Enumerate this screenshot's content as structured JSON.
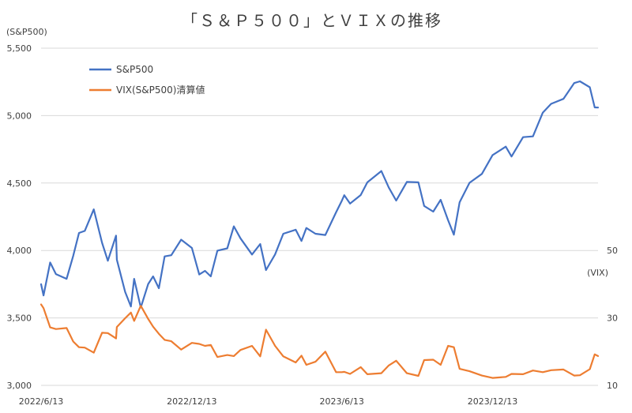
{
  "chart_data": {
    "type": "line",
    "title": "「Ｓ＆Ｐ５００」とＶＩＸの推移",
    "left_axis_label": "(S&P500)",
    "right_axis_label": "(VIX)",
    "left_axis": {
      "min": 3000,
      "max": 5500,
      "ticks": [
        "3,000",
        "3,500",
        "4,000",
        "4,500",
        "5,000",
        "5,500"
      ],
      "tick_values": [
        3000,
        3500,
        4000,
        4500,
        5000,
        5500
      ]
    },
    "right_axis": {
      "min": 10,
      "max": 110,
      "ticks": [
        "10",
        "30",
        "50"
      ],
      "tick_values": [
        10,
        30,
        50
      ]
    },
    "x_axis": {
      "start": "2022-06-13",
      "end": "2024-04-19",
      "tick_labels": [
        "2022/6/13",
        "2022/12/13",
        "2023/6/13",
        "2023/12/13"
      ],
      "tick_dates": [
        "2022-06-13",
        "2022-12-13",
        "2023-06-13",
        "2023-12-13"
      ]
    },
    "grid": "horizontal",
    "legend_position": "top-left",
    "series": [
      {
        "name": "S&P500",
        "axis": "left",
        "color": "#4472C4",
        "points": [
          [
            "2022-06-13",
            3750
          ],
          [
            "2022-06-16",
            3667
          ],
          [
            "2022-06-24",
            3911
          ],
          [
            "2022-07-01",
            3825
          ],
          [
            "2022-07-14",
            3790
          ],
          [
            "2022-07-22",
            3961
          ],
          [
            "2022-07-29",
            4130
          ],
          [
            "2022-08-05",
            4145
          ],
          [
            "2022-08-16",
            4305
          ],
          [
            "2022-08-26",
            4057
          ],
          [
            "2022-09-02",
            3924
          ],
          [
            "2022-09-12",
            4110
          ],
          [
            "2022-09-13",
            3932
          ],
          [
            "2022-09-23",
            3693
          ],
          [
            "2022-09-30",
            3585
          ],
          [
            "2022-10-04",
            3790
          ],
          [
            "2022-10-12",
            3577
          ],
          [
            "2022-10-21",
            3752
          ],
          [
            "2022-10-27",
            3808
          ],
          [
            "2022-11-03",
            3720
          ],
          [
            "2022-11-10",
            3956
          ],
          [
            "2022-11-18",
            3965
          ],
          [
            "2022-11-30",
            4080
          ],
          [
            "2022-12-13",
            4019
          ],
          [
            "2022-12-22",
            3822
          ],
          [
            "2022-12-29",
            3849
          ],
          [
            "2023-01-05",
            3808
          ],
          [
            "2023-01-13",
            3999
          ],
          [
            "2023-01-25",
            4016
          ],
          [
            "2023-02-02",
            4179
          ],
          [
            "2023-02-10",
            4090
          ],
          [
            "2023-02-24",
            3970
          ],
          [
            "2023-03-06",
            4048
          ],
          [
            "2023-03-13",
            3855
          ],
          [
            "2023-03-24",
            3971
          ],
          [
            "2023-04-03",
            4124
          ],
          [
            "2023-04-18",
            4154
          ],
          [
            "2023-04-25",
            4071
          ],
          [
            "2023-05-01",
            4167
          ],
          [
            "2023-05-12",
            4124
          ],
          [
            "2023-05-24",
            4115
          ],
          [
            "2023-06-06",
            4283
          ],
          [
            "2023-06-13",
            4369
          ],
          [
            "2023-06-16",
            4410
          ],
          [
            "2023-06-23",
            4348
          ],
          [
            "2023-07-06",
            4411
          ],
          [
            "2023-07-14",
            4505
          ],
          [
            "2023-07-31",
            4589
          ],
          [
            "2023-08-09",
            4467
          ],
          [
            "2023-08-18",
            4370
          ],
          [
            "2023-08-31",
            4508
          ],
          [
            "2023-09-14",
            4505
          ],
          [
            "2023-09-21",
            4330
          ],
          [
            "2023-10-02",
            4288
          ],
          [
            "2023-10-11",
            4376
          ],
          [
            "2023-10-20",
            4224
          ],
          [
            "2023-10-27",
            4117
          ],
          [
            "2023-11-03",
            4358
          ],
          [
            "2023-11-15",
            4502
          ],
          [
            "2023-11-30",
            4568
          ],
          [
            "2023-12-13",
            4707
          ],
          [
            "2023-12-29",
            4770
          ],
          [
            "2024-01-05",
            4697
          ],
          [
            "2024-01-19",
            4840
          ],
          [
            "2024-01-31",
            4846
          ],
          [
            "2024-02-12",
            5022
          ],
          [
            "2024-02-22",
            5087
          ],
          [
            "2024-03-08",
            5124
          ],
          [
            "2024-03-21",
            5241
          ],
          [
            "2024-03-28",
            5254
          ],
          [
            "2024-04-09",
            5210
          ],
          [
            "2024-04-15",
            5061
          ],
          [
            "2024-04-19",
            5060
          ]
        ]
      },
      {
        "name": "VIX(S&P500)清算値",
        "axis": "right",
        "color": "#ED7D31",
        "points": [
          [
            "2022-06-13",
            34.0
          ],
          [
            "2022-06-16",
            32.9
          ],
          [
            "2022-06-24",
            27.2
          ],
          [
            "2022-07-01",
            26.7
          ],
          [
            "2022-07-14",
            27.0
          ],
          [
            "2022-07-22",
            23.0
          ],
          [
            "2022-07-29",
            21.3
          ],
          [
            "2022-08-05",
            21.2
          ],
          [
            "2022-08-16",
            19.7
          ],
          [
            "2022-08-26",
            25.6
          ],
          [
            "2022-09-02",
            25.5
          ],
          [
            "2022-09-12",
            23.9
          ],
          [
            "2022-09-13",
            27.3
          ],
          [
            "2022-09-23",
            29.9
          ],
          [
            "2022-09-30",
            31.6
          ],
          [
            "2022-10-04",
            29.1
          ],
          [
            "2022-10-12",
            33.6
          ],
          [
            "2022-10-21",
            29.7
          ],
          [
            "2022-10-27",
            27.4
          ],
          [
            "2022-11-03",
            25.3
          ],
          [
            "2022-11-10",
            23.5
          ],
          [
            "2022-11-18",
            23.1
          ],
          [
            "2022-11-30",
            20.6
          ],
          [
            "2022-12-13",
            22.6
          ],
          [
            "2022-12-22",
            22.3
          ],
          [
            "2022-12-29",
            21.7
          ],
          [
            "2023-01-05",
            22.0
          ],
          [
            "2023-01-13",
            18.4
          ],
          [
            "2023-01-25",
            19.0
          ],
          [
            "2023-02-02",
            18.7
          ],
          [
            "2023-02-10",
            20.5
          ],
          [
            "2023-02-24",
            21.7
          ],
          [
            "2023-03-06",
            18.6
          ],
          [
            "2023-03-13",
            26.5
          ],
          [
            "2023-03-24",
            21.7
          ],
          [
            "2023-04-03",
            18.6
          ],
          [
            "2023-04-18",
            16.8
          ],
          [
            "2023-04-25",
            18.8
          ],
          [
            "2023-05-01",
            16.1
          ],
          [
            "2023-05-12",
            17.0
          ],
          [
            "2023-05-24",
            20.0
          ],
          [
            "2023-06-06",
            13.9
          ],
          [
            "2023-06-13",
            13.9
          ],
          [
            "2023-06-16",
            14.0
          ],
          [
            "2023-06-23",
            13.4
          ],
          [
            "2023-07-06",
            15.4
          ],
          [
            "2023-07-14",
            13.3
          ],
          [
            "2023-07-31",
            13.6
          ],
          [
            "2023-08-09",
            15.9
          ],
          [
            "2023-08-18",
            17.3
          ],
          [
            "2023-08-31",
            13.6
          ],
          [
            "2023-09-14",
            12.8
          ],
          [
            "2023-09-21",
            17.5
          ],
          [
            "2023-10-02",
            17.6
          ],
          [
            "2023-10-11",
            16.1
          ],
          [
            "2023-10-20",
            21.7
          ],
          [
            "2023-10-27",
            21.3
          ],
          [
            "2023-11-03",
            14.9
          ],
          [
            "2023-11-15",
            14.2
          ],
          [
            "2023-11-30",
            12.9
          ],
          [
            "2023-12-13",
            12.2
          ],
          [
            "2023-12-29",
            12.5
          ],
          [
            "2024-01-05",
            13.4
          ],
          [
            "2024-01-19",
            13.3
          ],
          [
            "2024-01-31",
            14.4
          ],
          [
            "2024-02-12",
            13.9
          ],
          [
            "2024-02-22",
            14.5
          ],
          [
            "2024-03-08",
            14.7
          ],
          [
            "2024-03-21",
            12.9
          ],
          [
            "2024-03-28",
            13.0
          ],
          [
            "2024-04-09",
            14.8
          ],
          [
            "2024-04-15",
            19.2
          ],
          [
            "2024-04-19",
            18.7
          ]
        ]
      }
    ]
  }
}
